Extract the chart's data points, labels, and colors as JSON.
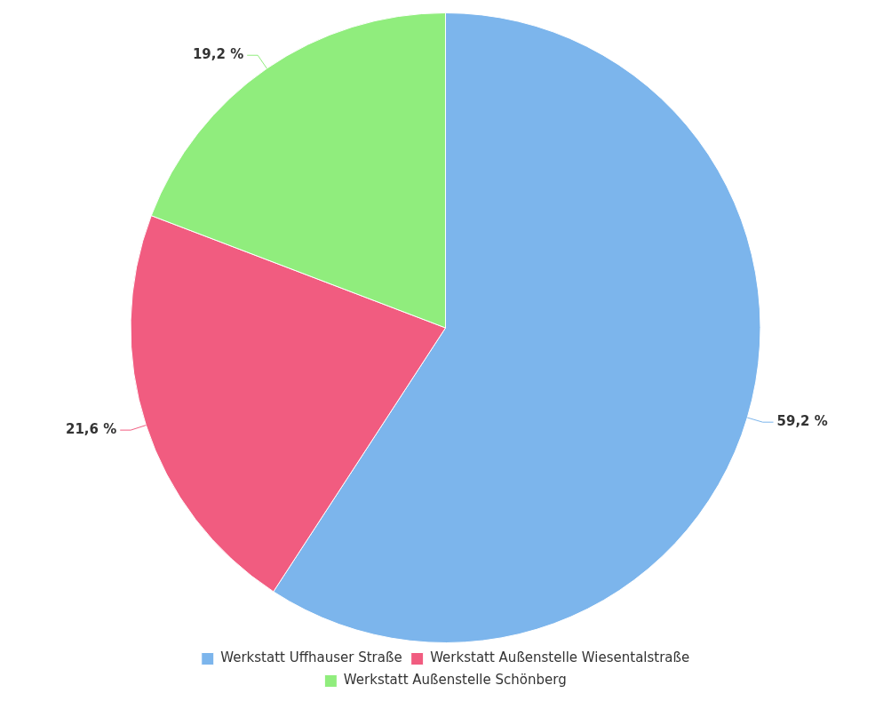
{
  "chart_data": {
    "type": "pie",
    "categories": [
      "Werkstatt Uffhauser Straße",
      "Werkstatt Außenstelle Wiesentalstraße",
      "Werkstatt Außenstelle Schönberg"
    ],
    "values": [
      59.2,
      21.6,
      19.2
    ],
    "colors": [
      "#7cb5ec",
      "#f15c80",
      "#90ed7d"
    ],
    "value_labels": [
      "59,2 %",
      "21,6 %",
      "19,2 %"
    ],
    "legend": "bottom"
  }
}
